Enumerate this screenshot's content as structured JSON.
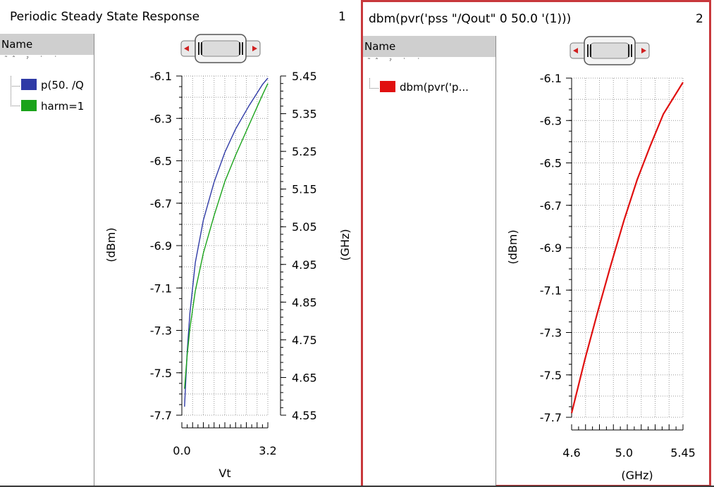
{
  "panels": [
    {
      "title": "Periodic Steady State Response",
      "number": "1",
      "legend": {
        "header": "Name",
        "items": [
          {
            "label": "p(50. /Q",
            "color": "#2f3aa6"
          },
          {
            "label": "harm=1",
            "color": "#1aa31a"
          }
        ]
      }
    },
    {
      "title": "dbm(pvr('pss \"/Qout\" 0 50.0 '(1)))",
      "number": "2",
      "legend": {
        "header": "Name",
        "items": [
          {
            "label": "dbm(pvr('p...",
            "color": "#e01010"
          }
        ]
      }
    }
  ],
  "chart_data": [
    {
      "type": "line",
      "xlabel": "Vt",
      "ylabel": "(dBm)",
      "y2label": "(GHz)",
      "xlim": [
        0.0,
        3.2
      ],
      "ylim": [
        -7.7,
        -6.1
      ],
      "y2lim": [
        4.55,
        5.45
      ],
      "x_ticks": [
        "0.0",
        "3.2"
      ],
      "y_ticks": [
        "-6.1",
        "-6.3",
        "-6.5",
        "-6.7",
        "-6.9",
        "-7.1",
        "-7.3",
        "-7.5",
        "-7.7"
      ],
      "y2_ticks": [
        "5.45",
        "5.35",
        "5.25",
        "5.15",
        "5.05",
        "4.95",
        "4.85",
        "4.75",
        "4.65",
        "4.55"
      ],
      "grid": true,
      "series": [
        {
          "name": "p(50. /Q",
          "color": "#2f3aa6",
          "axis": "left",
          "x": [
            0.1,
            0.2,
            0.3,
            0.5,
            0.8,
            1.2,
            1.6,
            2.0,
            2.5,
            3.0,
            3.2
          ],
          "y": [
            -7.66,
            -7.4,
            -7.22,
            -6.98,
            -6.78,
            -6.6,
            -6.46,
            -6.35,
            -6.24,
            -6.14,
            -6.11
          ]
        },
        {
          "name": "harm=1",
          "color": "#1aa31a",
          "axis": "right",
          "x": [
            0.1,
            0.2,
            0.3,
            0.5,
            0.8,
            1.2,
            1.6,
            2.0,
            2.5,
            3.0,
            3.2
          ],
          "y": [
            4.62,
            4.71,
            4.78,
            4.88,
            4.98,
            5.08,
            5.17,
            5.24,
            5.32,
            5.4,
            5.43
          ]
        }
      ]
    },
    {
      "type": "line",
      "xlabel": "(GHz)",
      "ylabel": "(dBm)",
      "xlim": [
        4.6,
        5.45
      ],
      "ylim": [
        -7.7,
        -6.1
      ],
      "x_ticks": [
        "4.6",
        "5.0",
        "5.45"
      ],
      "y_ticks": [
        "-6.1",
        "-6.3",
        "-6.5",
        "-6.7",
        "-6.9",
        "-7.1",
        "-7.3",
        "-7.5",
        "-7.7"
      ],
      "grid": true,
      "series": [
        {
          "name": "dbm(pvr('p...",
          "color": "#e01010",
          "x": [
            4.6,
            4.7,
            4.8,
            4.9,
            5.0,
            5.1,
            5.2,
            5.3,
            5.45
          ],
          "y": [
            -7.68,
            -7.43,
            -7.2,
            -6.98,
            -6.77,
            -6.58,
            -6.42,
            -6.27,
            -6.12
          ]
        }
      ]
    }
  ]
}
